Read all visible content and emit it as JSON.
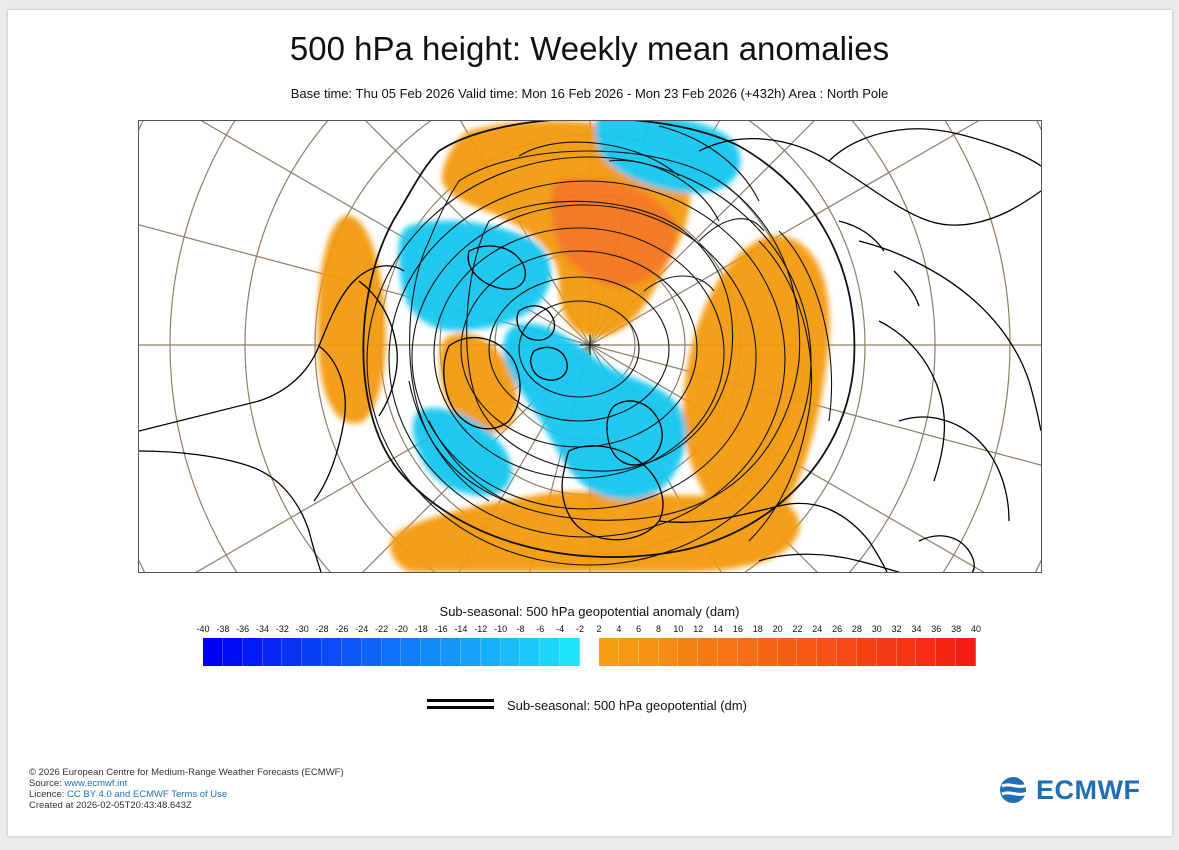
{
  "header": {
    "title": "500 hPa height: Weekly mean anomalies",
    "subtitle": "Base time: Thu 05 Feb 2026 Valid time: Mon 16 Feb 2026 - Mon 23 Feb 2026 (+432h) Area : North Pole"
  },
  "map": {
    "projection": "polar stereographic",
    "area": "North Pole",
    "negative_color": "#19c7f0",
    "positive_color": "#f39a0f",
    "contour_color": "#000000"
  },
  "colorbar": {
    "title": "Sub-seasonal: 500 hPa geopotential anomaly (dam)",
    "ticks": [
      "-40",
      "-38",
      "-36",
      "-34",
      "-32",
      "-30",
      "-28",
      "-26",
      "-24",
      "-22",
      "-20",
      "-18",
      "-16",
      "-14",
      "-12",
      "-10",
      "-8",
      "-6",
      "-4",
      "-2",
      "2",
      "4",
      "6",
      "8",
      "10",
      "12",
      "14",
      "16",
      "18",
      "20",
      "22",
      "24",
      "26",
      "28",
      "30",
      "32",
      "34",
      "36",
      "38",
      "40"
    ]
  },
  "legend": {
    "contour_label": "Sub-seasonal: 500 hPa geopotential (dm)"
  },
  "footer": {
    "copyright": "© 2026 European Centre for Medium-Range Weather Forecasts (ECMWF)",
    "source_label": "Source: ",
    "source_link": "www.ecmwf.int",
    "licence_label": "Licence: ",
    "licence_link": "CC BY 4.0 and ECMWF Terms of Use",
    "created": "Created at 2026-02-05T20:43:48.643Z"
  },
  "logo": {
    "text": "ECMWF",
    "color": "#1e6fb6"
  }
}
